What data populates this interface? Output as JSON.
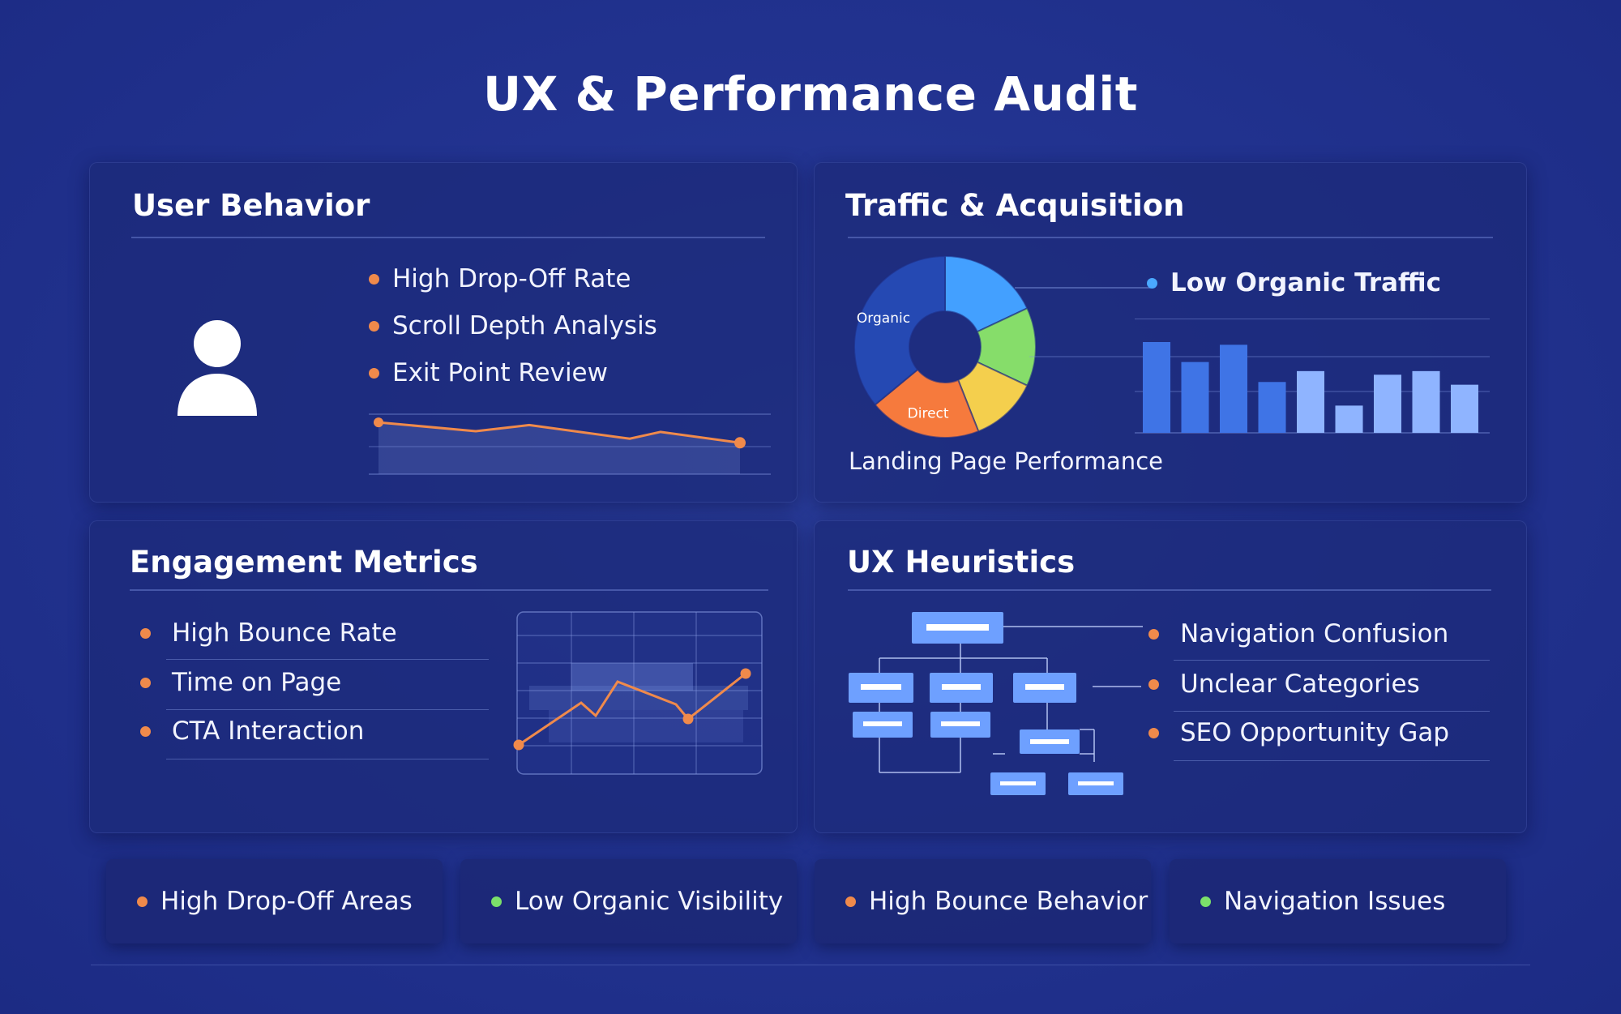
{
  "title": "UX & Performance Audit",
  "colors": {
    "orange": "#f08a4b",
    "green": "#7be06a",
    "blue": "#4aa8ff",
    "bar": "#3f74e6",
    "bar_light": "#8fb4ff"
  },
  "user_behavior": {
    "title": "User Behavior",
    "icon": "user-icon",
    "items": [
      "High Drop-Off Rate",
      "Scroll Depth Analysis",
      "Exit Point Review"
    ],
    "trend_values": [
      88,
      75,
      84,
      64,
      74,
      58
    ]
  },
  "traffic": {
    "title": "Traffic & Acquisition",
    "callout": "Low Organic Traffic",
    "caption": "Landing Page Performance",
    "donut": [
      {
        "label": "",
        "value": 18,
        "color": "#43a0ff"
      },
      {
        "label": "",
        "value": 14,
        "color": "#86dd6a"
      },
      {
        "label": "",
        "value": 12,
        "color": "#f4cf4d"
      },
      {
        "label": "Direct",
        "value": 20,
        "color": "#f67a3d"
      },
      {
        "label": "Organic",
        "value": 36,
        "color": "#2549b3"
      }
    ],
    "bars": [
      100,
      78,
      97,
      56,
      68,
      30,
      64,
      68,
      53
    ]
  },
  "engagement": {
    "title": "Engagement Metrics",
    "items": [
      "High Bounce Rate",
      "Time on Page",
      "CTA Interaction"
    ],
    "trend_values": [
      18,
      44,
      36,
      57,
      43,
      34,
      62
    ]
  },
  "heuristics": {
    "title": "UX Heuristics",
    "items": [
      "Navigation Confusion",
      "Unclear Categories",
      "SEO Opportunity Gap"
    ],
    "diagram_icon": "sitemap-icon"
  },
  "chips": [
    {
      "label": "High Drop-Off Areas",
      "dot": "orange"
    },
    {
      "label": "Low Organic Visibility",
      "dot": "green"
    },
    {
      "label": "High Bounce Behavior",
      "dot": "orange"
    },
    {
      "label": "Navigation Issues",
      "dot": "green"
    }
  ]
}
